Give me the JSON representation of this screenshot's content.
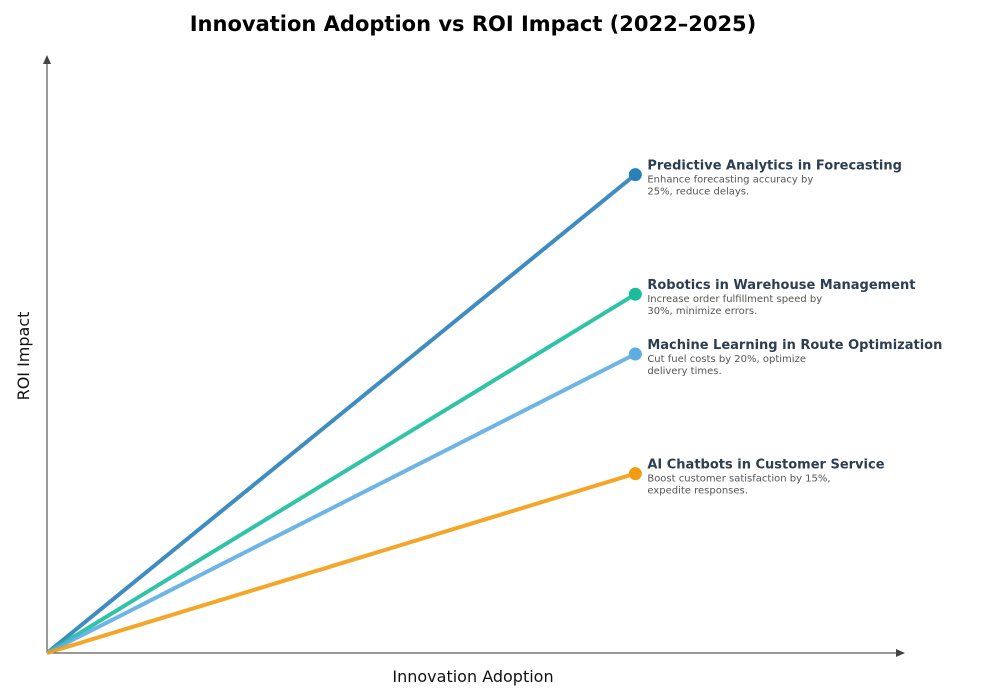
{
  "chart_data": {
    "type": "line",
    "title": "Innovation Adoption vs ROI Impact (2022–2025)",
    "xlabel": "Innovation Adoption",
    "ylabel": "ROI Impact",
    "xlim": [
      0,
      8.75
    ],
    "ylim": [
      0,
      10
    ],
    "grid": false,
    "ticks": false,
    "series": [
      {
        "name": "Predictive Analytics in Forecasting",
        "description_line1": "Enhance forecasting accuracy by",
        "description_line2": "25%, reduce delays.",
        "color": "#2980b9",
        "x": [
          0,
          6
        ],
        "y": [
          0,
          8
        ]
      },
      {
        "name": "Robotics in Warehouse Management",
        "description_line1": "Increase order fulfillment speed by",
        "description_line2": "30%, minimize errors.",
        "color": "#1abc9c",
        "x": [
          0,
          6
        ],
        "y": [
          0,
          6
        ]
      },
      {
        "name": "Machine Learning in Route Optimization",
        "description_line1": "Cut fuel costs by 20%, optimize",
        "description_line2": "delivery times.",
        "color": "#5dade2",
        "x": [
          0,
          6
        ],
        "y": [
          0,
          5
        ]
      },
      {
        "name": "AI Chatbots in Customer Service",
        "description_line1": "Boost customer satisfaction by 15%,",
        "description_line2": "expedite responses.",
        "color": "#f39c12",
        "x": [
          0,
          6
        ],
        "y": [
          0,
          3
        ]
      }
    ]
  }
}
